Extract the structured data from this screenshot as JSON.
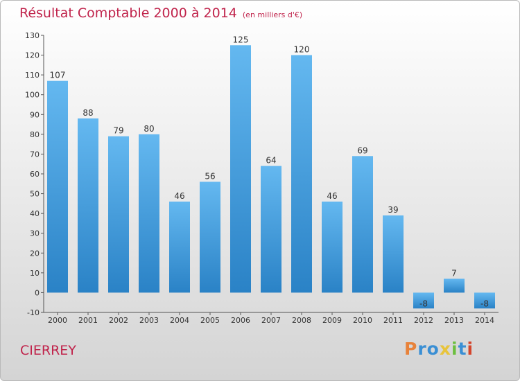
{
  "title": "Résultat Comptable 2000 à 2014",
  "subtitle": "(en milliers d'€)",
  "commune": "CIERREY",
  "logo": {
    "letters": [
      "P",
      "r",
      "o",
      "x",
      "i",
      "t",
      "i"
    ],
    "colors": [
      "#e8823a",
      "#3a8fd4",
      "#3a8fd4",
      "#e8c43a",
      "#6cbf3f",
      "#3a8fd4",
      "#d4452c"
    ]
  },
  "colors": {
    "bar_top": "#64b8f0",
    "bar_bottom": "#2a82c6",
    "text_red": "#c0234b"
  },
  "chart_data": {
    "type": "bar",
    "title": "Résultat Comptable 2000 à 2014",
    "xlabel": "",
    "ylabel": "",
    "categories": [
      "2000",
      "2001",
      "2002",
      "2003",
      "2004",
      "2005",
      "2006",
      "2007",
      "2008",
      "2009",
      "2010",
      "2011",
      "2012",
      "2013",
      "2014"
    ],
    "values": [
      107,
      88,
      79,
      80,
      46,
      56,
      125,
      64,
      120,
      46,
      69,
      39,
      -8,
      7,
      -8
    ],
    "data_labels": [
      "107",
      "88",
      "79",
      "80",
      "46",
      "56",
      "125",
      "64",
      "120",
      "46",
      "69",
      "39",
      "-8",
      "7",
      "-8"
    ],
    "yticks": [
      "-10",
      "0",
      "10",
      "20",
      "30",
      "40",
      "50",
      "60",
      "70",
      "80",
      "90",
      "100",
      "110",
      "120",
      "130"
    ],
    "ylim": [
      -10,
      130
    ],
    "grid": false
  }
}
